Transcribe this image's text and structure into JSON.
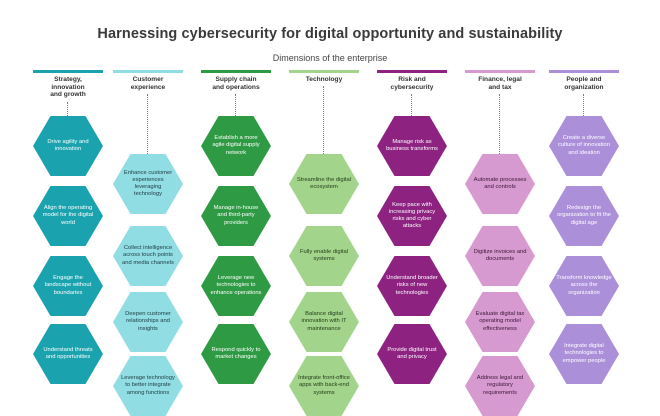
{
  "title": "Harnessing cybersecurity for digital opportunity and sustainability",
  "subtitle": "Dimensions of the enterprise",
  "columns": [
    {
      "heading": "Strategy,\ninnovation\nand growth",
      "color": "#1aa3ae",
      "text_color": "#ffffff",
      "items": [
        "Drive agility and innovation",
        "Align the operating model for the digital world",
        "Engage the landscape without boundaries",
        "Understand threats and opportunities"
      ]
    },
    {
      "heading": "Customer\nexperience",
      "color": "#90dde3",
      "text_color": "#1e3a40",
      "items": [
        "Enhance customer experiences leveraging technology",
        "Collect intelligence across touch points and media channels",
        "Deepen customer relationships and insights",
        "Leverage technology to better integrate among functions"
      ]
    },
    {
      "heading": "Supply chain\nand operations",
      "color": "#2e9a44",
      "text_color": "#ffffff",
      "items": [
        "Establish a more agile digital supply network",
        "Manage in-house and third-party providers",
        "Leverage new technologies to enhance operations",
        "Respond quickly to market changes"
      ]
    },
    {
      "heading": "Technology",
      "color": "#a3d48b",
      "text_color": "#1f3a18",
      "items": [
        "Streamline the digital ecosystem",
        "Fully enable digital systems",
        "Balance digital innovation with IT maintenance",
        "Integrate front-office apps with back-end systems"
      ]
    },
    {
      "heading": "Risk and\ncybersecurity",
      "color": "#8d2281",
      "text_color": "#ffffff",
      "items": [
        "Manage risk as business transforms",
        "Keep pace with increasing privacy risks and cyber attacks",
        "Understand broader risks of new technologies",
        "Provide digital trust and privacy"
      ]
    },
    {
      "heading": "Finance, legal\nand tax",
      "color": "#d79ad0",
      "text_color": "#3a1636",
      "items": [
        "Automate processes and controls",
        "Digitize invoices and documents",
        "Evaluate digital tax operating model effectiveness",
        "Address legal and regulatory requirements"
      ]
    },
    {
      "heading": "People and\norganization",
      "color": "#ab8fd9",
      "text_color": "#ffffff",
      "items": [
        "Create a diverse culture of innovation and ideation",
        "Redesign the organization to fit the digital age",
        "Transform knowledge across the organization",
        "Integrate digital technologies to empower people"
      ]
    }
  ]
}
